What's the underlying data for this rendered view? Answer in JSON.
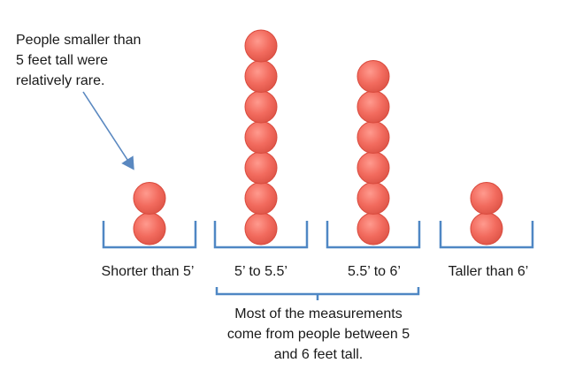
{
  "annotation_top": {
    "lines": [
      "People smaller than",
      "5 feet tall were",
      "relatively rare."
    ]
  },
  "annotation_bottom": {
    "lines": [
      "Most of the measurements",
      "come from people between 5",
      "and 6 feet tall."
    ]
  },
  "bins": [
    {
      "label": "Shorter than 5’",
      "count": 2
    },
    {
      "label": "5’ to 5.5’",
      "count": 7
    },
    {
      "label": "5.5’ to 6’",
      "count": 6
    },
    {
      "label": "Taller than 6’",
      "count": 2
    }
  ],
  "colors": {
    "ball_fill": "#f26b5e",
    "ball_stroke": "#d94a3d",
    "bin_stroke": "#4f87c4",
    "arrow": "#5a88c0",
    "text": "#1a1a1a"
  }
}
